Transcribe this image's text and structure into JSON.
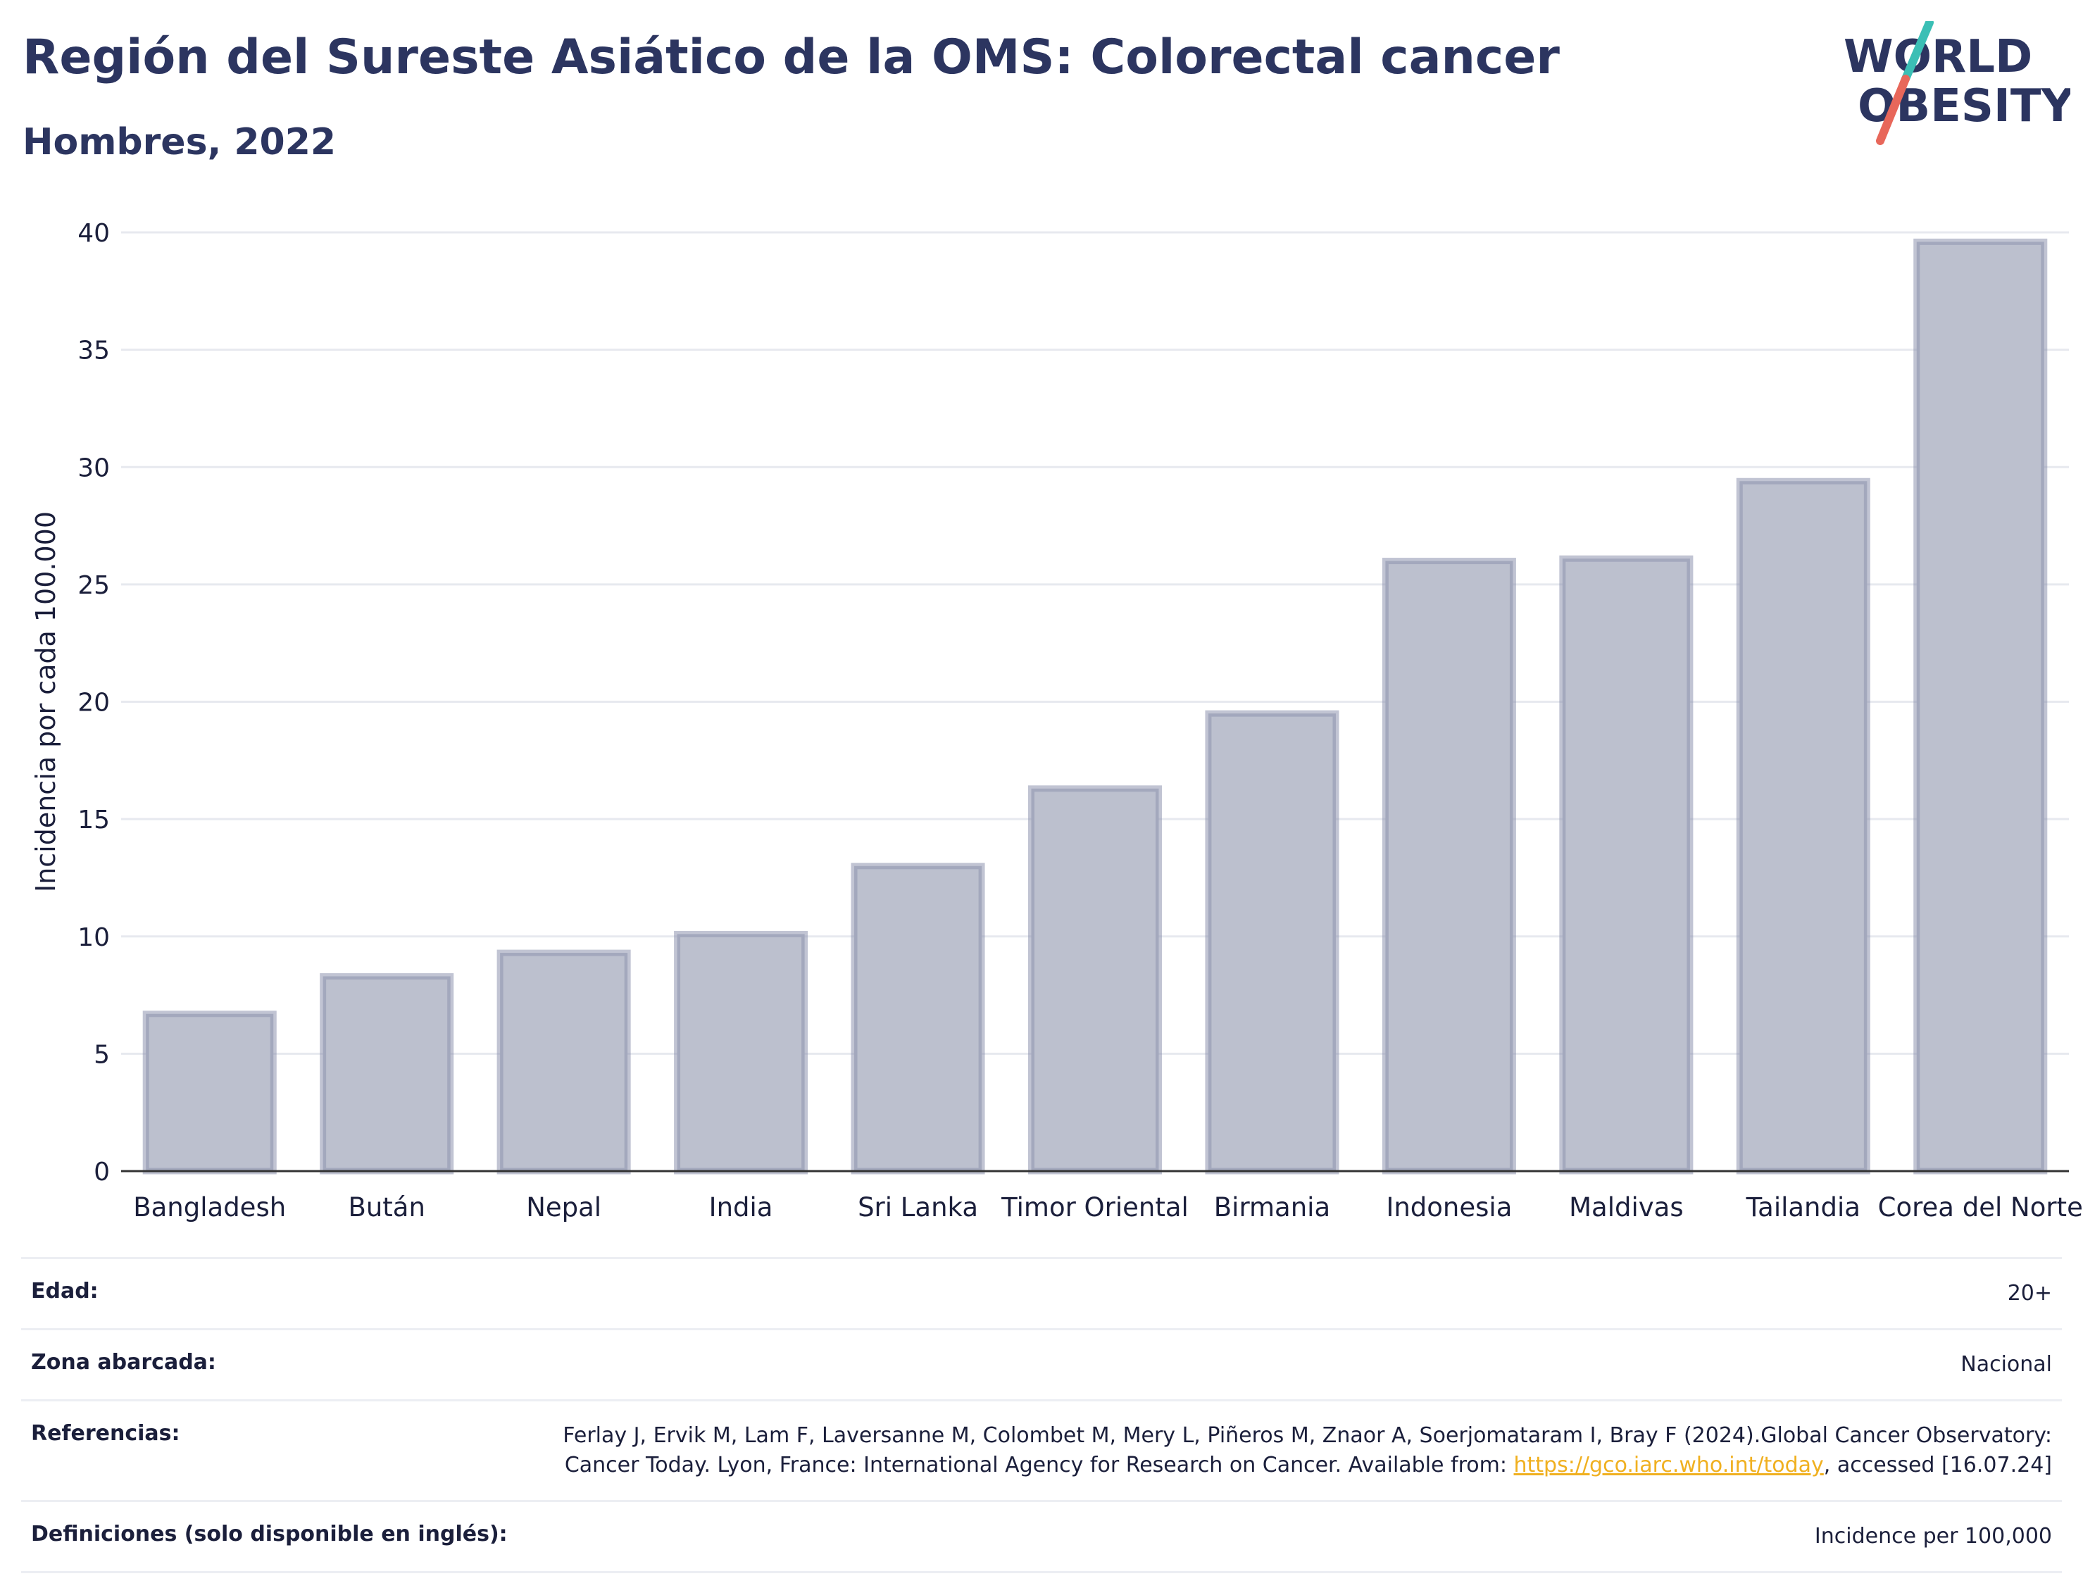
{
  "header": {
    "title": "Región del Sureste Asiático de la OMS: Colorectal cancer",
    "subtitle": "Hombres, 2022"
  },
  "logo": {
    "line1": "WORLD",
    "line2": "OBESITY",
    "colors": {
      "text": "#2c3560",
      "slash_top": "#3bbfb5",
      "slash_bottom": "#e8675a"
    }
  },
  "chart_data": {
    "type": "bar",
    "categories": [
      "Bangladesh",
      "Bután",
      "Nepal",
      "India",
      "Sri Lanka",
      "Timor Oriental",
      "Birmania",
      "Indonesia",
      "Maldivas",
      "Tailandia",
      "Corea del Norte"
    ],
    "values": [
      6.7,
      8.3,
      9.3,
      10.1,
      13.0,
      16.3,
      19.5,
      26.0,
      26.1,
      29.4,
      39.6
    ],
    "title": "",
    "xlabel": "",
    "ylabel": "Incidencia por cada 100.000",
    "ylim": [
      0,
      40
    ],
    "yticks": [
      0,
      5,
      10,
      15,
      20,
      25,
      30,
      35,
      40
    ],
    "grid": true,
    "colors": {
      "bar_fill": "#bcc0ce",
      "bar_stroke": "#8e94ae",
      "grid": "#e7e9ef",
      "axis": "#333333"
    }
  },
  "meta": {
    "age_label": "Edad:",
    "age_value": "20+",
    "area_label": "Zona abarcada:",
    "area_value": "Nacional",
    "ref_label": "Referencias:",
    "ref_text_before": "Ferlay J, Ervik M, Lam F, Laversanne M, Colombet M, Mery L, Piñeros M, Znaor A, Soerjomataram I, Bray F (2024).Global Cancer Observatory: Cancer Today. Lyon, France: International Agency for Research on Cancer. Available from: ",
    "ref_link": "https://gco.iarc.who.int/today",
    "ref_text_after": ", accessed [16.07.24]",
    "def_label": "Definiciones (solo disponible en inglés):",
    "def_value": "Incidence per 100,000"
  }
}
